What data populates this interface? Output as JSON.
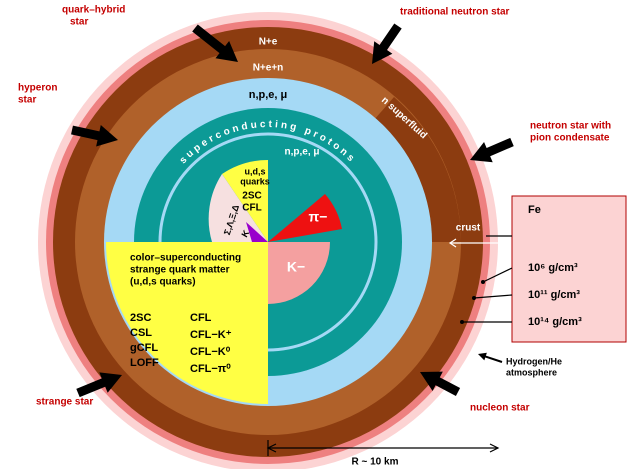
{
  "labels": {
    "quark_hybrid_star": [
      "quark–hybrid",
      "star"
    ],
    "traditional_neutron_star": "traditional neutron star",
    "hyperon_star": [
      "hyperon",
      "star"
    ],
    "pion_condensate_star": [
      "neutron star with",
      "pion condensate"
    ],
    "strange_star": "strange star",
    "nucleon_star": "nucleon star"
  },
  "layers": {
    "outer_crust": "N+e",
    "inner_crust": "N+e+n",
    "outer_core": "n,p,e, μ",
    "superfluid": "n superfluid",
    "superconducting": "superconducting protons",
    "inner_core": "n,p,e, μ",
    "pion": "π−",
    "kaon": "K−"
  },
  "hybrid_core": {
    "quarks": [
      "u,d,s",
      "quarks"
    ],
    "phases": [
      "2SC",
      "CFL"
    ],
    "hyperons": "Σ,Λ,Ξ,Δ",
    "kaon": "K"
  },
  "strange_matter": {
    "title": [
      "color–superconducting",
      "strange quark matter",
      "(u,d,s quarks)"
    ],
    "phases_left": [
      "2SC",
      "CSL",
      "gCFL",
      "LOFF"
    ],
    "phases_right": [
      "CFL",
      "CFL−K⁺",
      "CFL−K⁰",
      "CFL−π⁰"
    ]
  },
  "crust": "crust",
  "densities": {
    "composition": "Fe",
    "values": [
      "10⁶ g/cm³",
      "10¹¹ g/cm³",
      "10¹⁴ g/cm³"
    ]
  },
  "atmosphere": [
    "Hydrogen/He",
    "atmosphere"
  ],
  "radius": "R ~ 10 km"
}
